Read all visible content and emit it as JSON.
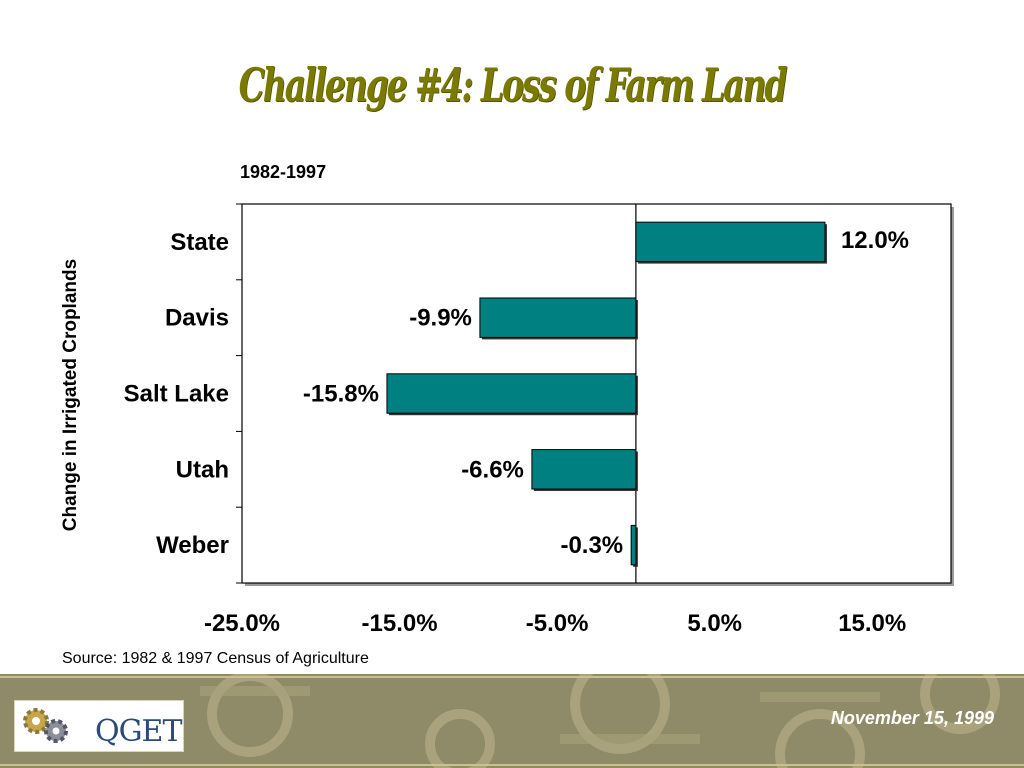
{
  "slide": {
    "title": "Challenge #4:  Loss of Farm Land",
    "source": "Source:  1982 & 1997 Census of Agriculture",
    "date": "November 15, 1999",
    "logo_text": "QGET"
  },
  "chart_data": {
    "type": "bar",
    "orientation": "horizontal",
    "subtitle": "1982-1997",
    "ylabel": "Change in Irrigated Croplands",
    "categories": [
      "State",
      "Davis",
      "Salt Lake",
      "Utah",
      "Weber"
    ],
    "values": [
      12.0,
      -9.9,
      -15.8,
      -6.6,
      -0.3
    ],
    "value_labels": [
      "12.0%",
      "-9.9%",
      "-15.8%",
      "-6.6%",
      "-0.3%"
    ],
    "xlim": [
      -25.0,
      20.0
    ],
    "xticks": [
      -25.0,
      -15.0,
      -5.0,
      5.0,
      15.0
    ],
    "xtick_labels": [
      "-25.0%",
      "-15.0%",
      "-5.0%",
      "5.0%",
      "15.0%"
    ],
    "bar_color": "#008080",
    "grid": false,
    "legend": "none"
  }
}
